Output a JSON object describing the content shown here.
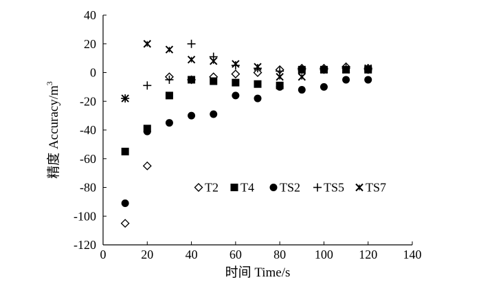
{
  "chart_data": {
    "type": "scatter",
    "xlabel": "时间 Time/s",
    "ylabel": "精度 Accuracy/m",
    "ylabel_superscript": "3",
    "xlim": [
      0,
      140
    ],
    "ylim": [
      -120,
      40
    ],
    "xticks": [
      "0",
      "20",
      "40",
      "60",
      "80",
      "100",
      "120",
      "140"
    ],
    "yticks": [
      "40",
      "20",
      "0",
      "-20",
      "-40",
      "-60",
      "-80",
      "-100",
      "-120"
    ],
    "grid": false,
    "legend_position": "lower-right",
    "series": [
      {
        "name": "T2",
        "marker": "diamond-open",
        "color": "#000000",
        "points": [
          [
            10,
            -105
          ],
          [
            20,
            -65
          ],
          [
            30,
            -3
          ],
          [
            40,
            -5
          ],
          [
            50,
            -3
          ],
          [
            60,
            -1
          ],
          [
            70,
            0
          ],
          [
            80,
            2
          ],
          [
            90,
            3
          ],
          [
            100,
            3
          ],
          [
            110,
            4
          ],
          [
            120,
            3
          ]
        ]
      },
      {
        "name": "T4",
        "marker": "square",
        "color": "#000000",
        "points": [
          [
            10,
            -55
          ],
          [
            20,
            -39
          ],
          [
            30,
            -16
          ],
          [
            40,
            -5
          ],
          [
            50,
            -6
          ],
          [
            60,
            -7
          ],
          [
            70,
            -8
          ],
          [
            80,
            -9
          ],
          [
            90,
            2
          ],
          [
            100,
            2
          ],
          [
            110,
            2
          ],
          [
            120,
            2
          ]
        ]
      },
      {
        "name": "TS2",
        "marker": "circle",
        "color": "#000000",
        "points": [
          [
            10,
            -91
          ],
          [
            20,
            -41
          ],
          [
            30,
            -35
          ],
          [
            40,
            -30
          ],
          [
            50,
            -29
          ],
          [
            60,
            -16
          ],
          [
            70,
            -18
          ],
          [
            80,
            -10
          ],
          [
            90,
            -12
          ],
          [
            100,
            -10
          ],
          [
            110,
            -5
          ],
          [
            120,
            -5
          ]
        ]
      },
      {
        "name": "TS5",
        "marker": "plus",
        "color": "#000000",
        "points": [
          [
            10,
            -18
          ],
          [
            20,
            -9
          ],
          [
            30,
            -5
          ],
          [
            40,
            20
          ],
          [
            50,
            11
          ],
          [
            60,
            5
          ],
          [
            70,
            3
          ],
          [
            80,
            1
          ],
          [
            90,
            2
          ],
          [
            100,
            2
          ],
          [
            110,
            3
          ],
          [
            120,
            2
          ]
        ]
      },
      {
        "name": "TS7",
        "marker": "asterisk",
        "color": "#000000",
        "points": [
          [
            10,
            -18
          ],
          [
            20,
            20
          ],
          [
            30,
            16
          ],
          [
            40,
            9
          ],
          [
            50,
            8
          ],
          [
            60,
            6
          ],
          [
            70,
            4
          ],
          [
            80,
            -3
          ],
          [
            90,
            -3
          ],
          [
            100,
            2
          ],
          [
            110,
            2
          ],
          [
            120,
            3
          ]
        ]
      }
    ]
  }
}
